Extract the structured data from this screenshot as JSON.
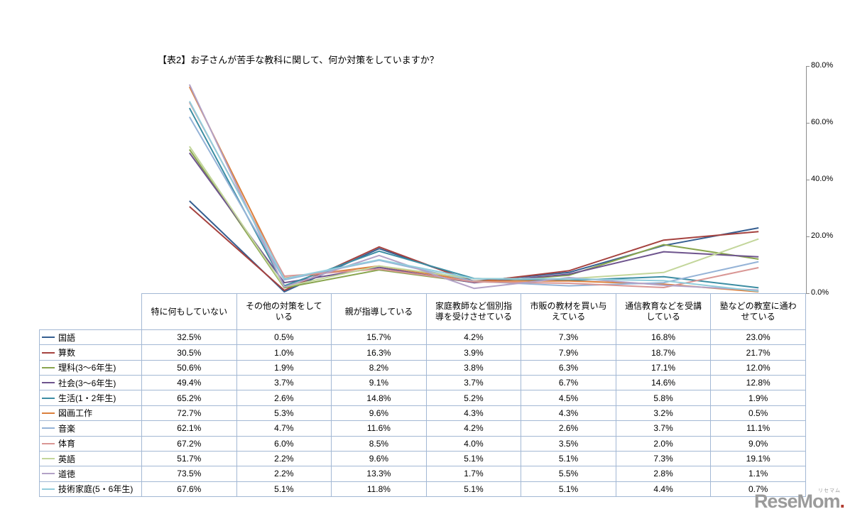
{
  "title": "【表2】お子さんが苦手な教科に関して、何か対策をしていますか？",
  "y_axis": {
    "ticks": [
      "80.0%",
      "60.0%",
      "40.0%",
      "20.0%",
      "0.0%"
    ],
    "max": 80,
    "min": 0
  },
  "chart_data": {
    "type": "line",
    "title": "【表2】お子さんが苦手な教科に関して、何か対策をしていますか？",
    "xlabel": "",
    "ylabel": "",
    "ylim": [
      0,
      80
    ],
    "grid": false,
    "legend_position": "table-left",
    "categories": [
      "特に何もしていない",
      "その他の対策をしている",
      "親が指導している",
      "家庭教師など個別指導を受けさせている",
      "市販の教材を買い与えている",
      "通信教育などを受講している",
      "塾などの教室に通わせている"
    ],
    "series": [
      {
        "name": "国語",
        "color": "#365F91",
        "values": [
          32.5,
          0.5,
          15.7,
          4.2,
          7.3,
          16.8,
          23.0
        ]
      },
      {
        "name": "算数",
        "color": "#A5423F",
        "values": [
          30.5,
          1.0,
          16.3,
          3.9,
          7.9,
          18.7,
          21.7
        ]
      },
      {
        "name": "理科(3～6年生)",
        "color": "#89A54E",
        "values": [
          50.6,
          1.9,
          8.2,
          3.8,
          6.3,
          17.1,
          12.0
        ]
      },
      {
        "name": "社会(3～6年生)",
        "color": "#6E548D",
        "values": [
          49.4,
          3.7,
          9.1,
          3.7,
          6.7,
          14.6,
          12.8
        ]
      },
      {
        "name": "生活(1・2年生)",
        "color": "#3C8DA3",
        "values": [
          65.2,
          2.6,
          14.8,
          5.2,
          4.5,
          5.8,
          1.9
        ]
      },
      {
        "name": "図画工作",
        "color": "#DB803C",
        "values": [
          72.7,
          5.3,
          9.6,
          4.3,
          4.3,
          3.2,
          0.5
        ]
      },
      {
        "name": "音楽",
        "color": "#95B3D7",
        "values": [
          62.1,
          4.7,
          11.6,
          4.2,
          2.6,
          3.7,
          11.1
        ]
      },
      {
        "name": "体育",
        "color": "#D99694",
        "values": [
          67.2,
          6.0,
          8.5,
          4.0,
          3.5,
          2.0,
          9.0
        ]
      },
      {
        "name": "英語",
        "color": "#C3D69B",
        "values": [
          51.7,
          2.2,
          9.6,
          5.1,
          5.1,
          7.3,
          19.1
        ]
      },
      {
        "name": "道徳",
        "color": "#B3A2C7",
        "values": [
          73.5,
          2.2,
          13.3,
          1.7,
          5.5,
          2.8,
          1.1
        ]
      },
      {
        "name": "技術家庭(5・6年生)",
        "color": "#92CDDC",
        "values": [
          67.6,
          5.1,
          11.8,
          5.1,
          5.1,
          4.4,
          0.7
        ]
      }
    ]
  },
  "watermark": {
    "text": "ReseMom",
    "dot": ".",
    "furigana": "リセマム"
  }
}
